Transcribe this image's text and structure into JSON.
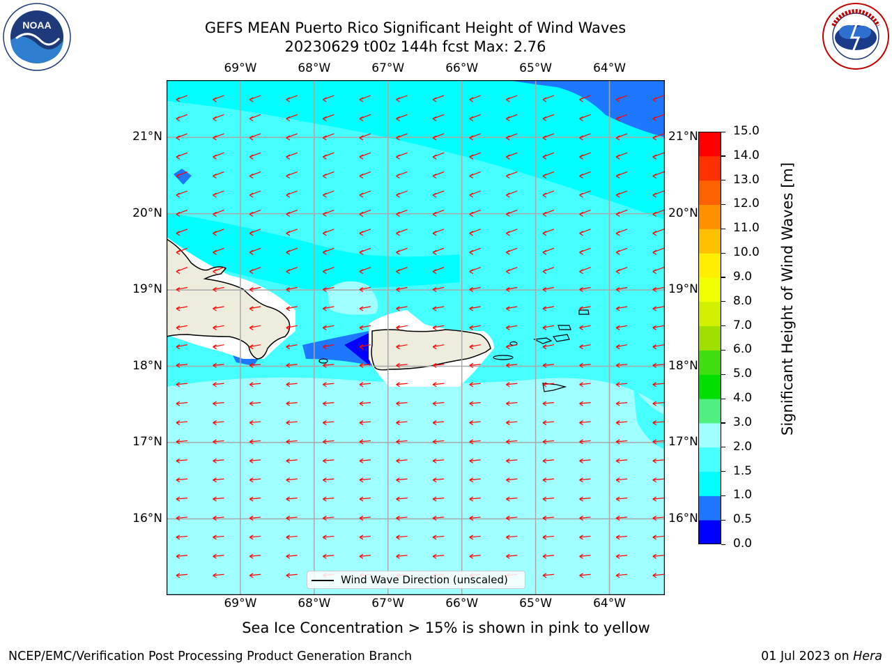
{
  "header": {
    "title_line1": "GEFS MEAN Puerto Rico Significant Height of Wind Waves",
    "title_line2": "20230629 t00z 144h fcst   Max: 2.76"
  },
  "logos": {
    "left": {
      "name": "noaa-logo",
      "text": "NOAA",
      "ring_text": "NATIONAL OCEANIC AND ATMOSPHERIC ADMINISTRATION · U.S. DEPARTMENT OF COMMERCE"
    },
    "right": {
      "name": "nws-logo",
      "ring_text": "NATIONAL WEATHER SERVICE"
    }
  },
  "map": {
    "lon_labels": [
      "69°W",
      "68°W",
      "67°W",
      "66°W",
      "65°W",
      "64°W"
    ],
    "lat_labels": [
      "21°N",
      "20°N",
      "19°N",
      "18°N",
      "17°N",
      "16°N"
    ],
    "lon_extent": [
      -70.0,
      -63.25
    ],
    "lat_extent": [
      15.0,
      21.75
    ],
    "arrow_color": "#ff0000",
    "land_color": "#eeecdc",
    "legend_label": "Wind Wave Direction (unscaled)"
  },
  "colorbar": {
    "label": "Significant Height of Wind Waves [m]",
    "ticks": [
      "0.0",
      "0.5",
      "1.0",
      "1.5",
      "2.0",
      "3.0",
      "4.0",
      "5.0",
      "6.0",
      "7.0",
      "8.0",
      "9.0",
      "10.0",
      "11.0",
      "12.0",
      "13.0",
      "14.0",
      "15.0"
    ],
    "colors": [
      "#0000ff",
      "#1e78ff",
      "#00ffff",
      "#46ffff",
      "#a0ffff",
      "#50f080",
      "#00e000",
      "#40e010",
      "#a0e000",
      "#d0f000",
      "#f0ff00",
      "#ffee00",
      "#ffc000",
      "#ff9000",
      "#ff6000",
      "#ff3000",
      "#ff0000"
    ]
  },
  "footer": {
    "note": "Sea Ice Concentration > 15% is shown in pink to yellow",
    "credit": "NCEP/EMC/Verification Post Processing Product Generation Branch",
    "date": "01 Jul 2023 on",
    "host": "Hera"
  }
}
